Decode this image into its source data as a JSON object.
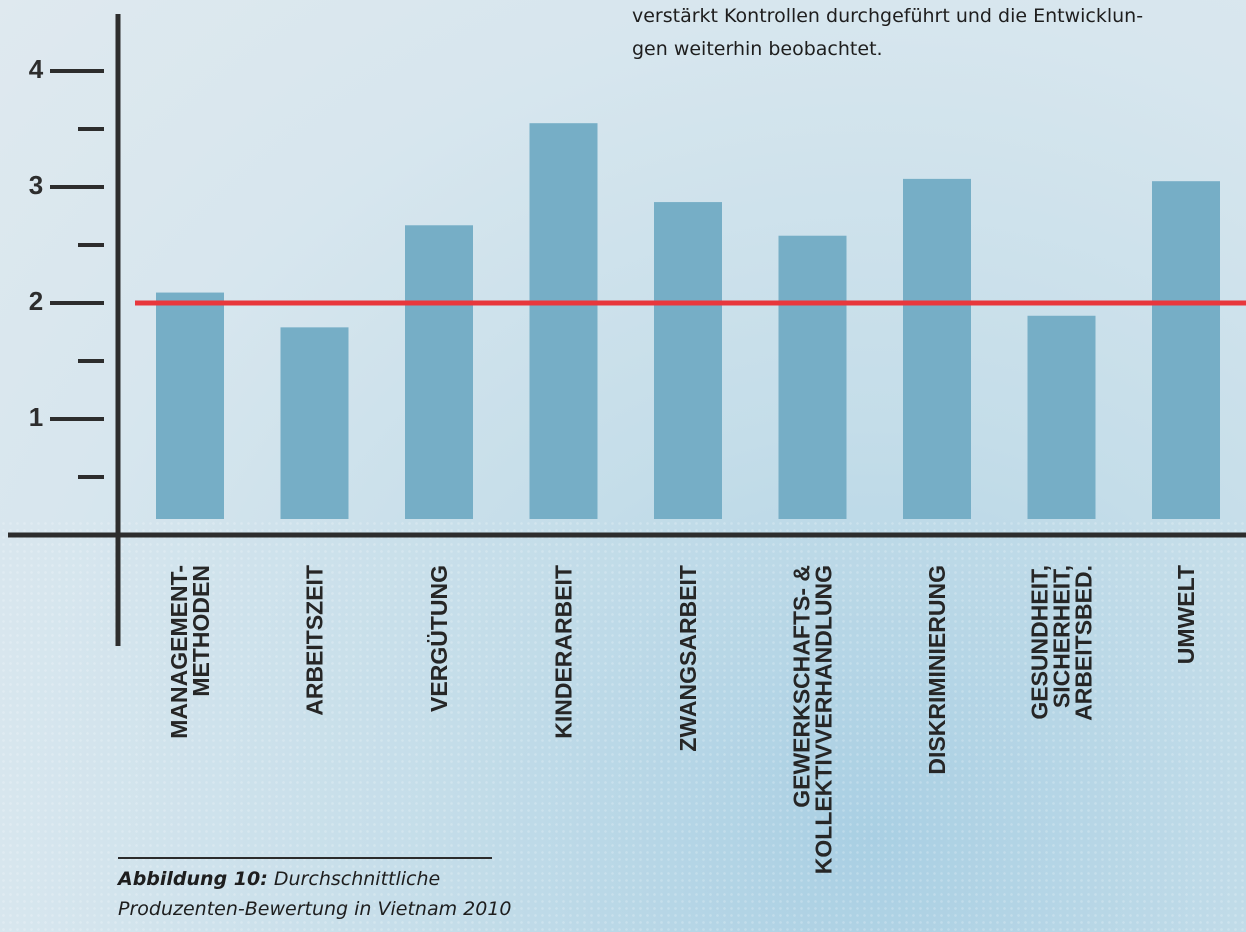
{
  "intro_text": "verstärkt Kontrollen durchgeführt und die Entwicklun-\ngen weiterhin beobachtet.",
  "caption": {
    "label": "Abbildung 10:",
    "text": " Durchschnittliche Produzenten-Bewertung in Vietnam 2010"
  },
  "colors": {
    "bar": "#76aec6",
    "reference_line": "#e8373c",
    "axis": "#2d2d2d"
  },
  "chart_data": {
    "type": "bar",
    "title": "",
    "xlabel": "",
    "ylabel": "",
    "ylim": [
      0,
      4
    ],
    "yticks": [
      1,
      2,
      3,
      4
    ],
    "minor_yticks": [
      0.5,
      1.5,
      2.5,
      3.5
    ],
    "reference_line": 2,
    "grid": false,
    "categories": [
      [
        "MANAGEMENT-",
        "METHODEN"
      ],
      [
        "ARBEITSZEIT"
      ],
      [
        "VERGÜTUNG"
      ],
      [
        "KINDERARBEIT"
      ],
      [
        "ZWANGSARBEIT"
      ],
      [
        "GEWERKSCHAFTS- &",
        "KOLLEKTIVVERHANDLUNG"
      ],
      [
        "DISKRIMINIERUNG"
      ],
      [
        "GESUNDHEIT,",
        "SICHERHEIT,",
        "ARBEITSBED."
      ],
      [
        "UMWELT"
      ]
    ],
    "values": [
      2.09,
      1.79,
      2.67,
      3.55,
      2.87,
      2.58,
      3.07,
      1.89,
      3.05
    ]
  }
}
